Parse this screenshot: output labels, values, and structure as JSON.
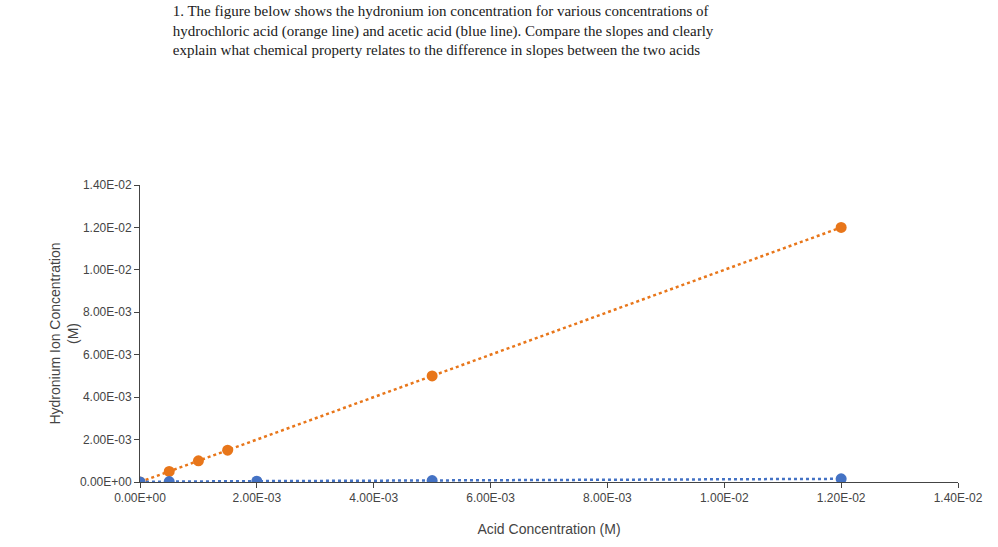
{
  "chart_data": {
    "type": "line",
    "title": "1. The figure below shows the hydronium ion concentration for various concentrations of\nhydrochloric acid (orange line) and acetic acid (blue line). Compare the slopes and clearly\nexplain what chemical property relates to the difference in slopes between the two acids",
    "x_label": "Acid Concentration (M)",
    "y_label": "Hydronium Ion Concentration\n(M)",
    "series": [
      {
        "color": "#E8761A",
        "marker": "circle",
        "line_style": "dotted",
        "x": [
          0.0,
          0.0005,
          0.001,
          0.0015,
          0.005,
          0.012
        ],
        "values": [
          0.0,
          0.0005,
          0.001,
          0.0015,
          0.005,
          0.012
        ]
      },
      {
        "color": "#4472C4",
        "marker": "circle",
        "line_style": "dotted",
        "x": [
          0.0,
          0.0005,
          0.002,
          0.005,
          0.012
        ],
        "values": [
          0.0,
          2e-05,
          4e-05,
          7e-05,
          0.00015
        ]
      }
    ],
    "xlim": [
      0.0,
      0.014
    ],
    "ylim": [
      0.0,
      0.014
    ],
    "xticks": [
      {
        "value": 0.0,
        "label": "0.00E+00"
      },
      {
        "value": 0.002,
        "label": "2.00E-03"
      },
      {
        "value": 0.004,
        "label": "4.00E-03"
      },
      {
        "value": 0.006,
        "label": "6.00E-03"
      },
      {
        "value": 0.008,
        "label": "8.00E-03"
      },
      {
        "value": 0.01,
        "label": "1.00E-02"
      },
      {
        "value": 0.012,
        "label": "1.20E-02"
      },
      {
        "value": 0.014,
        "label": "1.40E-02"
      }
    ],
    "yticks": [
      {
        "value": 0.0,
        "label": "0.00E+00"
      },
      {
        "value": 0.002,
        "label": "2.00E-03"
      },
      {
        "value": 0.004,
        "label": "4.00E-03"
      },
      {
        "value": 0.006,
        "label": "6.00E-03"
      },
      {
        "value": 0.008,
        "label": "8.00E-03"
      },
      {
        "value": 0.01,
        "label": "1.00E-02"
      },
      {
        "value": 0.012,
        "label": "1.20E-02"
      },
      {
        "value": 0.014,
        "label": "1.40E-02"
      }
    ],
    "grid": false
  }
}
